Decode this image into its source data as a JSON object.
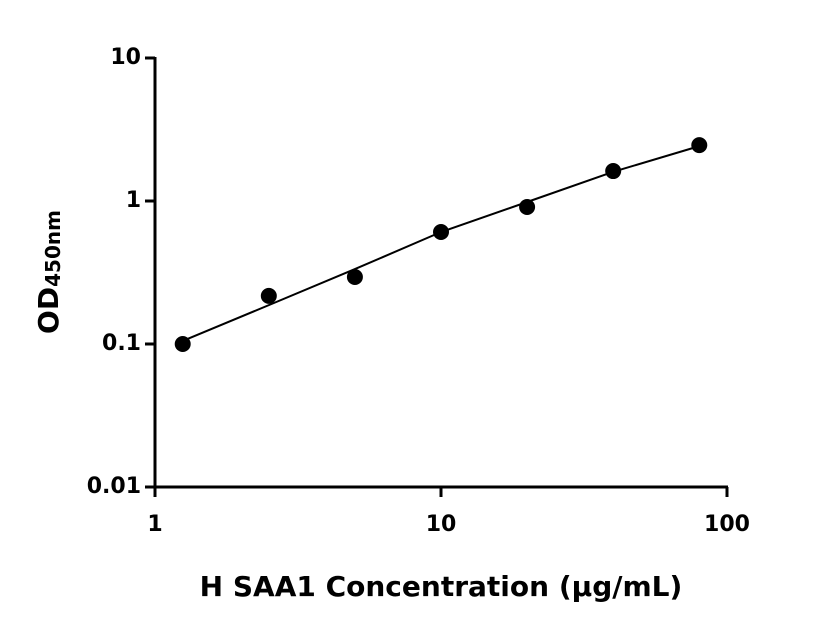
{
  "chart_data": {
    "type": "scatter",
    "xlabel": "H SAA1 Concentration (µg/mL)",
    "ylabel": "OD",
    "ylabel_sub": "450nm",
    "xscale": "log",
    "yscale": "log",
    "xlim": [
      1,
      100
    ],
    "xticks": [
      1,
      10,
      100
    ],
    "ylim": [
      0.01,
      10
    ],
    "yticks": [
      0.01,
      0.1,
      1,
      10
    ],
    "series": [
      {
        "kind": "points",
        "color": "#000000",
        "x": [
          1.25,
          2.5,
          5,
          10,
          20,
          40,
          80
        ],
        "values": [
          0.1,
          0.217,
          0.294,
          0.607,
          0.908,
          1.62,
          2.46
        ]
      },
      {
        "kind": "line",
        "color": "#000000",
        "x": [
          1.25,
          2.5,
          5,
          10,
          20,
          40,
          80
        ],
        "values": [
          0.105,
          0.187,
          0.334,
          0.607,
          0.984,
          1.6,
          2.42
        ]
      }
    ]
  }
}
